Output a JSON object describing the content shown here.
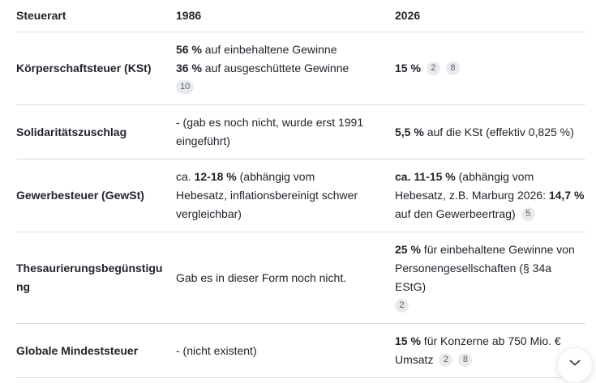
{
  "colors": {
    "text": "#21242b",
    "row_border": "#dadce0",
    "badge_background": "#e8eaed",
    "badge_text": "#5a6067"
  },
  "table": {
    "columns": [
      "Steuerart",
      "1986",
      "2026"
    ],
    "rows": [
      {
        "steuerart": "Körperschaftsteuer (KSt)",
        "y1986": [
          {
            "b": "56 %"
          },
          {
            "t": " auf einbehaltene Gewinne"
          },
          {
            "br": true
          },
          {
            "b": "36 %"
          },
          {
            "t": " auf ausgeschüttete Gewinne"
          },
          {
            "br": true
          },
          {
            "badge": "10"
          }
        ],
        "y2026": [
          {
            "b": "15 %"
          },
          {
            "badge": "2"
          },
          {
            "badge": "8"
          }
        ]
      },
      {
        "steuerart": "Solidaritätszuschlag",
        "y1986": [
          {
            "t": "- (gab es noch nicht, wurde erst 1991 eingeführt)"
          }
        ],
        "y2026": [
          {
            "b": "5,5 %"
          },
          {
            "t": " auf die KSt (effektiv 0,825 %)"
          }
        ]
      },
      {
        "steuerart": "Gewerbesteuer (GewSt)",
        "y1986": [
          {
            "t": "ca. "
          },
          {
            "b": "12-18 %"
          },
          {
            "t": " (abhängig vom Hebesatz, inflationsbereinigt schwer vergleichbar)"
          }
        ],
        "y2026": [
          {
            "b": "ca. 11-15 %"
          },
          {
            "t": " (abhängig vom Hebesatz, z.B. Marburg 2026: "
          },
          {
            "b": "14,7 %"
          },
          {
            "t": " auf den Gewerbeertrag)"
          },
          {
            "badge": "5"
          }
        ]
      },
      {
        "steuerart": "Thesaurierungsbegünstigung",
        "y1986": [
          {
            "t": "Gab es in dieser Form noch nicht."
          }
        ],
        "y2026": [
          {
            "b": "25 %"
          },
          {
            "t": " für einbehaltene Gewinne von Personengesellschaften (§ 34a EStG)"
          },
          {
            "br": true
          },
          {
            "badge": "2"
          }
        ]
      },
      {
        "steuerart": "Globale Mindeststeuer",
        "y1986": [
          {
            "t": "- (nicht existent)"
          }
        ],
        "y2026": [
          {
            "b": "15 %"
          },
          {
            "t": " für Konzerne ab 750 Mio. € Umsatz"
          },
          {
            "badge": "2"
          },
          {
            "badge": "8"
          }
        ]
      }
    ]
  },
  "scroll_down_button": {
    "icon": "chevron-down"
  }
}
